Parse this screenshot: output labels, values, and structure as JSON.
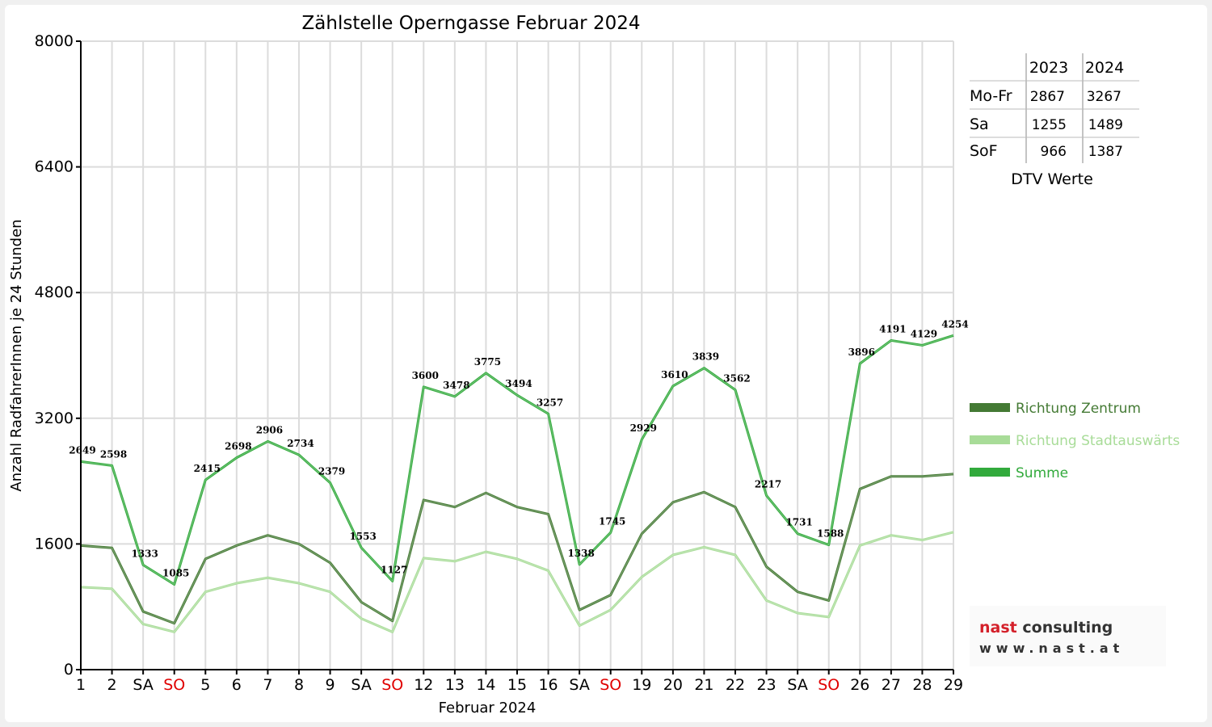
{
  "chart_data": {
    "type": "line",
    "title": "Zählstelle Operngasse Februar 2024",
    "xlabel": "Februar 2024",
    "ylabel": "Anzahl RadfahrerInnen je 24 Stunden",
    "ylim": [
      0,
      8000
    ],
    "yticks": [
      "0",
      "1600",
      "3200",
      "4800",
      "6400",
      "8000"
    ],
    "grid": true,
    "legend_position": "right",
    "categories": [
      "1",
      "2",
      "SA",
      "SO",
      "5",
      "6",
      "7",
      "8",
      "9",
      "SA",
      "SO",
      "12",
      "13",
      "14",
      "15",
      "16",
      "SA",
      "SO",
      "19",
      "20",
      "21",
      "22",
      "23",
      "SA",
      "SO",
      "26",
      "27",
      "28",
      "29"
    ],
    "weekend_categories": [
      "SO"
    ],
    "series": [
      {
        "name": "Richtung Zentrum",
        "color": "#447a34",
        "values": [
          1580,
          1550,
          740,
          590,
          1410,
          1580,
          1710,
          1600,
          1360,
          860,
          620,
          2160,
          2070,
          2250,
          2070,
          1980,
          760,
          950,
          1730,
          2130,
          2260,
          2070,
          1310,
          990,
          880,
          2300,
          2460,
          2460,
          2490
        ]
      },
      {
        "name": "Richtung Stadtauswärts",
        "color": "#a8dc98",
        "values": [
          1050,
          1030,
          580,
          480,
          990,
          1100,
          1170,
          1100,
          990,
          650,
          480,
          1420,
          1380,
          1500,
          1410,
          1260,
          560,
          760,
          1180,
          1460,
          1560,
          1460,
          880,
          720,
          670,
          1580,
          1710,
          1650,
          1750
        ]
      },
      {
        "name": "Summe",
        "color": "#32aa3c",
        "values": [
          2649,
          2598,
          1333,
          1085,
          2415,
          2698,
          2906,
          2734,
          2379,
          1553,
          1127,
          3600,
          3478,
          3775,
          3494,
          3257,
          1338,
          1745,
          2929,
          3610,
          3839,
          3562,
          2217,
          1731,
          1588,
          3896,
          4191,
          4129,
          4254
        ]
      }
    ],
    "data_labels": [
      "2649",
      "2598",
      "1333",
      "1085",
      "2415",
      "2698",
      "2906",
      "2734",
      "2379",
      "1553",
      "1127",
      "3600",
      "3478",
      "3775",
      "3494",
      "3257",
      "1338",
      "1745",
      "2929",
      "3610",
      "3839",
      "3562",
      "2217",
      "1731",
      "1588",
      "3896",
      "4191",
      "4129",
      "4254"
    ]
  },
  "dtv_table": {
    "caption": "DTV Werte",
    "headers": [
      "",
      "2023",
      "2024"
    ],
    "rows": [
      {
        "label": "Mo-Fr",
        "v2023": "2867",
        "v2024": "3267"
      },
      {
        "label": "Sa",
        "v2023": "1255",
        "v2024": "1489"
      },
      {
        "label": "SoF",
        "v2023": "966",
        "v2024": "1387"
      }
    ]
  },
  "logo": {
    "brand_left": "nast",
    "brand_right": "consulting",
    "url": "www.nast.at"
  },
  "colors": {
    "weekend_tick": "#e00000",
    "grid": "#dcdcdc",
    "brand_red": "#d4202a"
  }
}
